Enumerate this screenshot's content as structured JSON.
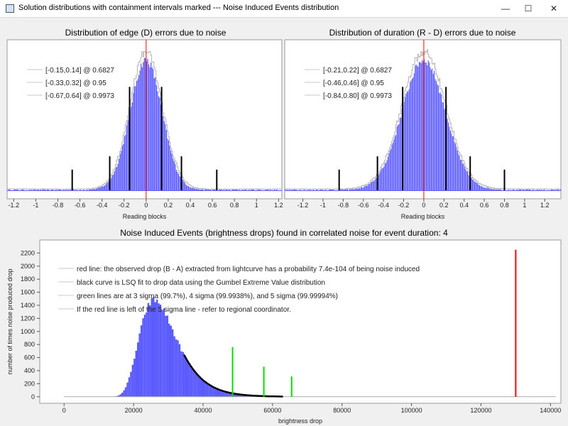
{
  "window": {
    "title": "Solution distributions with containment intervals marked --- Noise Induced Events distribution",
    "icons": {
      "app": "app-window-icon",
      "minimize": "minimize-icon",
      "maximize": "maximize-icon",
      "close": "close-icon"
    }
  },
  "chart_data": [
    {
      "type": "bar",
      "title": "Distribution of edge (D) errors due to noise",
      "xlabel": "Reading blocks",
      "ylabel": "",
      "xlim": [
        -1.26,
        1.23
      ],
      "xticks": [
        -1.2,
        -1,
        -0.8,
        -0.6,
        -0.4,
        -0.2,
        0,
        0.2,
        0.4,
        0.6,
        0.8,
        1,
        1.2
      ],
      "xtick_labels": [
        "-1.2",
        "-1",
        "-0.8",
        "-0.6",
        "-0.4",
        "-0.2",
        "0",
        "0.2",
        "0.4",
        "0.6",
        "0.8",
        "1",
        "1.2"
      ],
      "center": 0.0,
      "sigma": 0.145,
      "legend": [
        "[-0.15,0.14] @ 0.6827",
        "[-0.33,0.32] @ 0.95",
        "[-0.67,0.64] @ 0.9973"
      ],
      "legend_position": "top-left",
      "intervals": [
        [
          -0.15,
          0.14
        ],
        [
          -0.33,
          0.32
        ],
        [
          -0.67,
          0.64
        ]
      ],
      "interval_heights": [
        0.7,
        0.23,
        0.14
      ],
      "colors": {
        "hist": "#5a5aff",
        "envelope": "#b4b4b4",
        "zero_line": "#ff0000",
        "interval_line": "#000000"
      }
    },
    {
      "type": "bar",
      "title": "Distribution of duration (R - D) errors due to noise",
      "xlabel": "Reading blocks",
      "ylabel": "",
      "xlim": [
        -1.38,
        1.36
      ],
      "xticks": [
        -1.2,
        -1,
        -0.8,
        -0.6,
        -0.4,
        -0.2,
        0,
        0.2,
        0.4,
        0.6,
        0.8,
        1,
        1.2
      ],
      "xtick_labels": [
        "-1.2",
        "-1",
        "-0.8",
        "-0.6",
        "-0.4",
        "-0.2",
        "0",
        "0.2",
        "0.4",
        "0.6",
        "0.8",
        "1",
        "1.2"
      ],
      "center": 0.0,
      "sigma": 0.215,
      "legend": [
        "[-0.21,0.22] @ 0.6827",
        "[-0.46,0.46] @ 0.95",
        "[-0.84,0.80] @ 0.9973"
      ],
      "legend_position": "top-left",
      "intervals": [
        [
          -0.21,
          0.22
        ],
        [
          -0.46,
          0.46
        ],
        [
          -0.84,
          0.8
        ]
      ],
      "interval_heights": [
        0.7,
        0.23,
        0.14
      ],
      "colors": {
        "hist": "#5a5aff",
        "envelope": "#b4b4b4",
        "zero_line": "#ff0000",
        "interval_line": "#000000"
      }
    },
    {
      "type": "bar",
      "title": "Noise Induced Events (brightness drops) found in correlated noise for event duration: 4",
      "xlabel": "brightness drop",
      "ylabel": "number of times noise produced drop",
      "xlim": [
        -7000,
        143000
      ],
      "ylim": [
        -100,
        2400
      ],
      "xticks": [
        0,
        20000,
        40000,
        60000,
        80000,
        100000,
        120000,
        140000
      ],
      "xtick_labels": [
        "0",
        "20000",
        "40000",
        "60000",
        "80000",
        "100000",
        "120000",
        "140000"
      ],
      "yticks": [
        0,
        200,
        400,
        600,
        800,
        1000,
        1200,
        1400,
        1600,
        1800,
        2000,
        2200
      ],
      "ytick_labels": [
        "0",
        "200",
        "400",
        "600",
        "800",
        "1000",
        "1200",
        "1400",
        "1600",
        "1800",
        "2000",
        "2200"
      ],
      "gumbel": {
        "mode": 26000,
        "scale": 5200,
        "peak": 1480,
        "fit_from": 34500,
        "fit_to": 63000
      },
      "hist_range": [
        8000,
        62000
      ],
      "observed_drop": {
        "x": 130000,
        "height": 2250
      },
      "sigma_lines": [
        {
          "x": 48500,
          "height": 760
        },
        {
          "x": 57500,
          "height": 460
        },
        {
          "x": 65500,
          "height": 310
        }
      ],
      "legend": [
        "red line: the observed drop (B - A) extracted from lightcurve has a probability 7.4e-104 of being noise induced",
        "black curve is LSQ fit to drop data using the Gumbel Extreme Value distribution",
        "green lines are at 3 sigma (99.7%), 4 sigma (99.9938%), and 5 sigma (99.99994%)",
        "If the red line is left of the 5 sigma line - refer to regional coordinator."
      ],
      "legend_position": "top-left",
      "colors": {
        "hist": "#5a5aff",
        "fit": "#000000",
        "observed": "#ff0000",
        "sigma": "#00e000",
        "baseline": "#aaaaaa"
      }
    }
  ]
}
